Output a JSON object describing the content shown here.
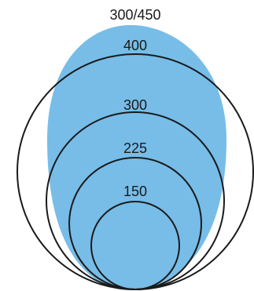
{
  "diagram": {
    "colors": {
      "fill": "#77bde8",
      "stroke": "#1a1a1a",
      "text": "#1a1a1a"
    },
    "shaded_region_label": "300/450",
    "circle_labels": [
      "400",
      "300",
      "225",
      "150"
    ]
  }
}
